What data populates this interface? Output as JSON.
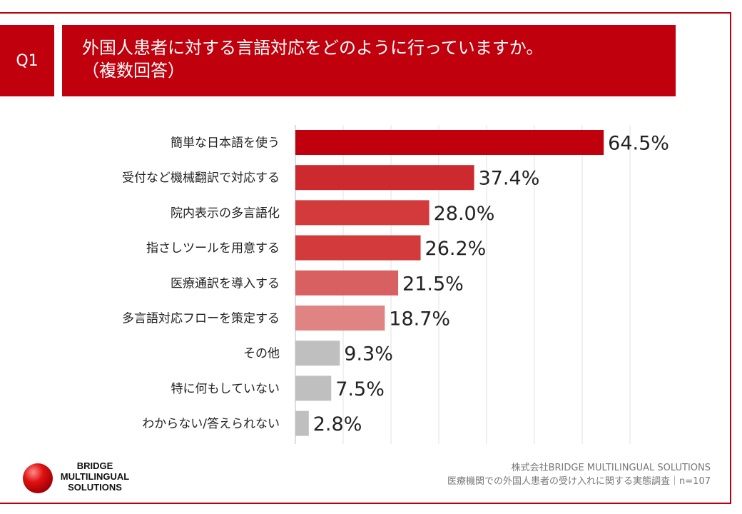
{
  "header": {
    "badge": "Q1",
    "title_line1": "外国人患者に対する言語対応をどのように行っていますか。",
    "title_line2": "（複数回答）"
  },
  "chart_data": {
    "type": "bar",
    "orientation": "horizontal",
    "categories": [
      "簡単な日本語を使う",
      "受付など機械翻訳で対応する",
      "院内表示の多言語化",
      "指さしツールを用意する",
      "医療通訳を導入する",
      "多言語対応フローを策定する",
      "その他",
      "特に何もしていない",
      "わからない/答えられない"
    ],
    "values": [
      64.5,
      37.4,
      28.0,
      26.2,
      21.5,
      18.7,
      9.3,
      7.5,
      2.8
    ],
    "value_labels": [
      "64.5%",
      "37.4%",
      "28.0%",
      "26.2%",
      "21.5%",
      "18.7%",
      "9.3%",
      "7.5%",
      "2.8%"
    ],
    "colors": [
      "#c0000c",
      "#cc2a2e",
      "#d23a3b",
      "#d23a3b",
      "#d96060",
      "#e08383",
      "#bfbfbf",
      "#bfbfbf",
      "#bfbfbf"
    ],
    "xlim": [
      0,
      70
    ],
    "grid": true,
    "title": "外国人患者に対する言語対応をどのように行っていますか。（複数回答）"
  },
  "logo": {
    "line1": "BRIDGE",
    "line2": "MULTILINGUAL",
    "line3": "SOLUTIONS"
  },
  "footer": {
    "company": "株式会社BRIDGE MULTILINGUAL SOLUTIONS",
    "survey": "医療機関での外国人患者の受け入れに関する実態調査｜n=107"
  }
}
